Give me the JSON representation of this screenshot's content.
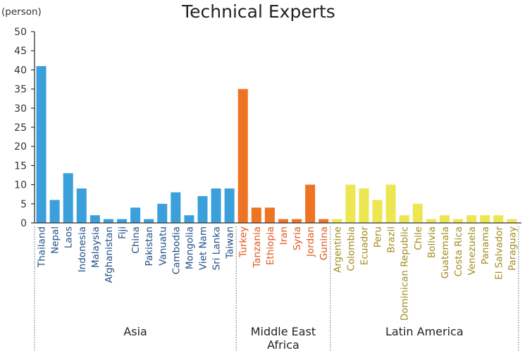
{
  "chart_data": {
    "type": "bar",
    "title": "Technical Experts",
    "ylabel": "(person)",
    "ylim": [
      0,
      50
    ],
    "yticks": [
      0,
      5,
      10,
      15,
      20,
      25,
      30,
      35,
      40,
      45,
      50
    ],
    "grid": false,
    "categories": [
      "Thailand",
      "Nepal",
      "Laos",
      "Indonesia",
      "Malaysia",
      "Afghanistan",
      "Fiji",
      "China",
      "Pakistan",
      "Vanuatu",
      "Cambodia",
      "Mongolia",
      "Viet Nam",
      "Sri Lanka",
      "Taiwan",
      "Turkey",
      "Tanzania",
      "Ethiopia",
      "Iran",
      "Syria",
      "Jordan",
      "Gunina",
      "Argentine",
      "Colombia",
      "Ecuador",
      "Peru",
      "Brazil",
      "Dominican Republic",
      "Chile",
      "Bolivia",
      "Guatemala",
      "Costa Rica",
      "Venezuela",
      "Panama",
      "El Salvador",
      "Paraguay"
    ],
    "values": [
      41,
      6,
      13,
      9,
      2,
      1,
      1,
      4,
      1,
      5,
      8,
      2,
      7,
      9,
      9,
      35,
      4,
      4,
      1,
      1,
      10,
      1,
      1,
      10,
      9,
      6,
      10,
      2,
      5,
      1,
      2,
      1,
      2,
      2,
      2,
      1
    ],
    "groups": [
      {
        "label": "Asia",
        "count": 15,
        "bar_color": "#3a9fdb",
        "label_color": "#1f4e86"
      },
      {
        "label": "Middle East Africa",
        "lines": [
          "Middle East",
          "Africa"
        ],
        "count": 7,
        "bar_color": "#ee7322",
        "label_color": "#e0561a"
      },
      {
        "label": "Latin America",
        "count": 14,
        "bar_color": "#ece650",
        "label_color": "#a08c1c"
      }
    ]
  }
}
